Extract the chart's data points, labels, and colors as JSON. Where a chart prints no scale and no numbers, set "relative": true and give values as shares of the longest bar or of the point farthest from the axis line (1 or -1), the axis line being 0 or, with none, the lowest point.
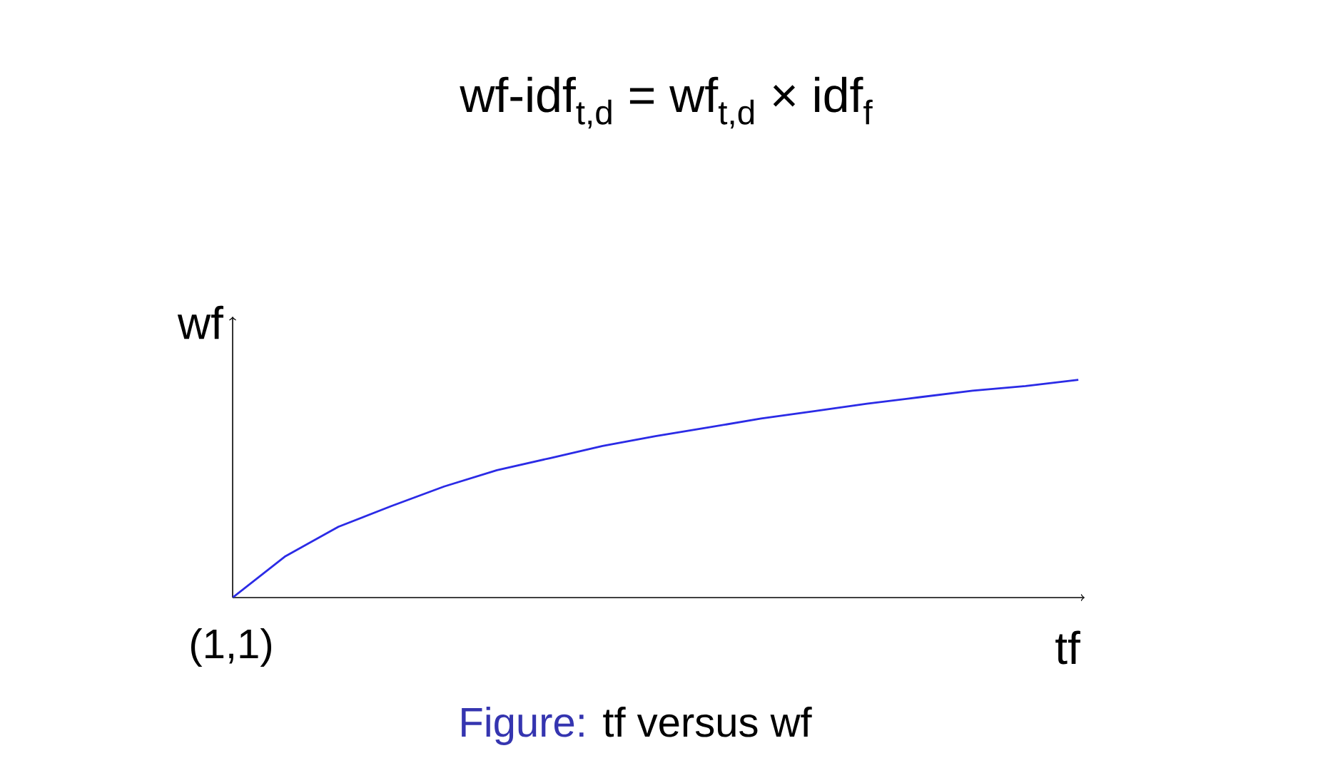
{
  "chart_data": {
    "type": "line",
    "title": "wf-idf$_{t,d}$ = wf$_{t,d}$ × idf$_{f}$",
    "xlabel": "tf",
    "ylabel": "wf",
    "annotations": [
      "(1,1)",
      "Figure:",
      "tf versus wf"
    ],
    "relative": true,
    "categories": [
      null,
      null,
      null,
      null,
      null,
      null,
      null,
      null,
      null,
      null,
      null,
      null,
      null,
      null,
      null,
      null,
      null
    ],
    "values": [
      0,
      0.19,
      0.325,
      0.42,
      0.51,
      0.585,
      0.64,
      0.696,
      0.741,
      0.781,
      0.822,
      0.856,
      0.89,
      0.92,
      0.95,
      0.971,
      1
    ],
    "color": "#2b2be6"
  }
}
